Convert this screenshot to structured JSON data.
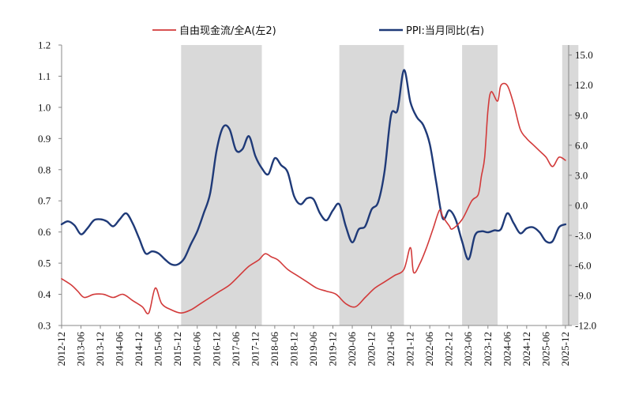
{
  "chart_data": {
    "type": "line",
    "title": "",
    "legend_position": "top",
    "colors": {
      "fcf": "#d23a3a",
      "ppi": "#1f3a78",
      "shade": "#d9d9d9",
      "axis": "#888888"
    },
    "legend": [
      {
        "key": "fcf",
        "label": "自由现金流/全A(左2)"
      },
      {
        "key": "ppi",
        "label": "PPI:当月同比(右)"
      }
    ],
    "x_ticks": [
      "2012-12",
      "2013-06",
      "2013-12",
      "2014-06",
      "2014-12",
      "2015-06",
      "2015-12",
      "2016-06",
      "2016-12",
      "2017-06",
      "2017-12",
      "2018-06",
      "2018-12",
      "2019-06",
      "2019-12",
      "2020-06",
      "2020-12",
      "2021-06",
      "2021-12",
      "2022-06",
      "2022-12",
      "2023-06",
      "2023-12",
      "2024-06",
      "2024-12",
      "2025-06",
      "2025-12"
    ],
    "x_range": [
      2012.917,
      2026.0
    ],
    "y_left": {
      "range": [
        0.3,
        1.2
      ],
      "ticks": [
        "0.3",
        "0.4",
        "0.5",
        "0.6",
        "0.7",
        "0.8",
        "0.9",
        "1.0",
        "1.1",
        "1.2"
      ]
    },
    "y_right": {
      "range": [
        -12.0,
        16.0
      ],
      "ticks": [
        "-12.0",
        "-9.0",
        "-6.0",
        "-3.0",
        "0.0",
        "3.0",
        "6.0",
        "9.0",
        "12.0",
        "15.0"
      ]
    },
    "shaded_periods": [
      {
        "start": 2016.0,
        "end": 2018.083
      },
      {
        "start": 2020.083,
        "end": 2021.75
      },
      {
        "start": 2023.25,
        "end": 2024.167
      },
      {
        "start": 2025.833,
        "end": 2026.25
      }
    ],
    "series": [
      {
        "name": "PPI:当月同比(右)",
        "key": "ppi",
        "axis": "right",
        "x": [
          2012.917,
          2013.083,
          2013.25,
          2013.417,
          2013.583,
          2013.75,
          2013.917,
          2014.083,
          2014.25,
          2014.417,
          2014.583,
          2014.75,
          2014.917,
          2015.083,
          2015.25,
          2015.417,
          2015.583,
          2015.75,
          2015.917,
          2016.083,
          2016.25,
          2016.417,
          2016.583,
          2016.75,
          2016.917,
          2017.083,
          2017.25,
          2017.417,
          2017.583,
          2017.75,
          2017.917,
          2018.083,
          2018.25,
          2018.417,
          2018.583,
          2018.75,
          2018.917,
          2019.083,
          2019.25,
          2019.417,
          2019.583,
          2019.75,
          2019.917,
          2020.083,
          2020.25,
          2020.417,
          2020.583,
          2020.75,
          2020.917,
          2021.083,
          2021.25,
          2021.417,
          2021.583,
          2021.75,
          2021.917,
          2022.083,
          2022.25,
          2022.417,
          2022.583,
          2022.75,
          2022.917,
          2023.083,
          2023.25,
          2023.417,
          2023.583,
          2023.75,
          2023.917,
          2024.083,
          2024.25,
          2024.417,
          2024.583,
          2024.75,
          2024.917,
          2025.083,
          2025.25,
          2025.417,
          2025.583,
          2025.75,
          2025.917
        ],
        "values": [
          -1.9,
          -1.6,
          -2.0,
          -2.9,
          -2.3,
          -1.5,
          -1.4,
          -1.6,
          -2.1,
          -1.4,
          -0.8,
          -1.8,
          -3.3,
          -4.8,
          -4.6,
          -4.8,
          -5.4,
          -5.9,
          -5.9,
          -5.3,
          -3.9,
          -2.6,
          -0.8,
          1.2,
          5.5,
          7.8,
          7.6,
          5.5,
          5.6,
          6.9,
          4.9,
          3.7,
          3.1,
          4.7,
          4.0,
          3.3,
          0.9,
          0.1,
          0.7,
          0.6,
          -0.8,
          -1.5,
          -0.5,
          0.1,
          -2.1,
          -3.7,
          -2.4,
          -2.1,
          -0.4,
          0.3,
          3.4,
          9.0,
          9.5,
          13.5,
          10.3,
          8.8,
          8.0,
          6.1,
          2.3,
          -1.3,
          -0.5,
          -1.4,
          -3.6,
          -5.4,
          -3.0,
          -2.6,
          -2.7,
          -2.5,
          -2.4,
          -0.8,
          -1.8,
          -2.8,
          -2.3,
          -2.2,
          -2.7,
          -3.6,
          -3.6,
          -2.2,
          -1.9
        ]
      },
      {
        "name": "自由现金流/全A(左2)",
        "key": "fcf",
        "axis": "left",
        "x": [
          2012.917,
          2013.167,
          2013.333,
          2013.5,
          2013.75,
          2014.0,
          2014.25,
          2014.5,
          2014.75,
          2015.0,
          2015.167,
          2015.333,
          2015.5,
          2015.75,
          2016.0,
          2016.25,
          2016.5,
          2016.75,
          2017.0,
          2017.25,
          2017.5,
          2017.75,
          2018.0,
          2018.167,
          2018.333,
          2018.5,
          2018.75,
          2019.0,
          2019.25,
          2019.5,
          2019.75,
          2020.0,
          2020.25,
          2020.5,
          2020.75,
          2021.0,
          2021.25,
          2021.5,
          2021.75,
          2021.917,
          2022.0,
          2022.167,
          2022.333,
          2022.5,
          2022.667,
          2022.75,
          2022.917,
          2023.0,
          2023.25,
          2023.5,
          2023.667,
          2023.75,
          2023.833,
          2023.917,
          2024.0,
          2024.167,
          2024.25,
          2024.417,
          2024.583,
          2024.75,
          2024.917,
          2025.083,
          2025.25,
          2025.417,
          2025.583,
          2025.75,
          2025.917
        ],
        "values": [
          0.45,
          0.43,
          0.41,
          0.39,
          0.4,
          0.4,
          0.39,
          0.4,
          0.38,
          0.36,
          0.34,
          0.42,
          0.37,
          0.35,
          0.34,
          0.35,
          0.37,
          0.39,
          0.41,
          0.43,
          0.46,
          0.49,
          0.51,
          0.53,
          0.52,
          0.51,
          0.48,
          0.46,
          0.44,
          0.42,
          0.41,
          0.4,
          0.37,
          0.36,
          0.39,
          0.42,
          0.44,
          0.46,
          0.48,
          0.55,
          0.47,
          0.5,
          0.55,
          0.61,
          0.67,
          0.65,
          0.62,
          0.61,
          0.64,
          0.7,
          0.72,
          0.78,
          0.84,
          0.99,
          1.05,
          1.02,
          1.07,
          1.07,
          1.01,
          0.93,
          0.9,
          0.88,
          0.86,
          0.84,
          0.81,
          0.84,
          0.83
        ]
      }
    ]
  }
}
